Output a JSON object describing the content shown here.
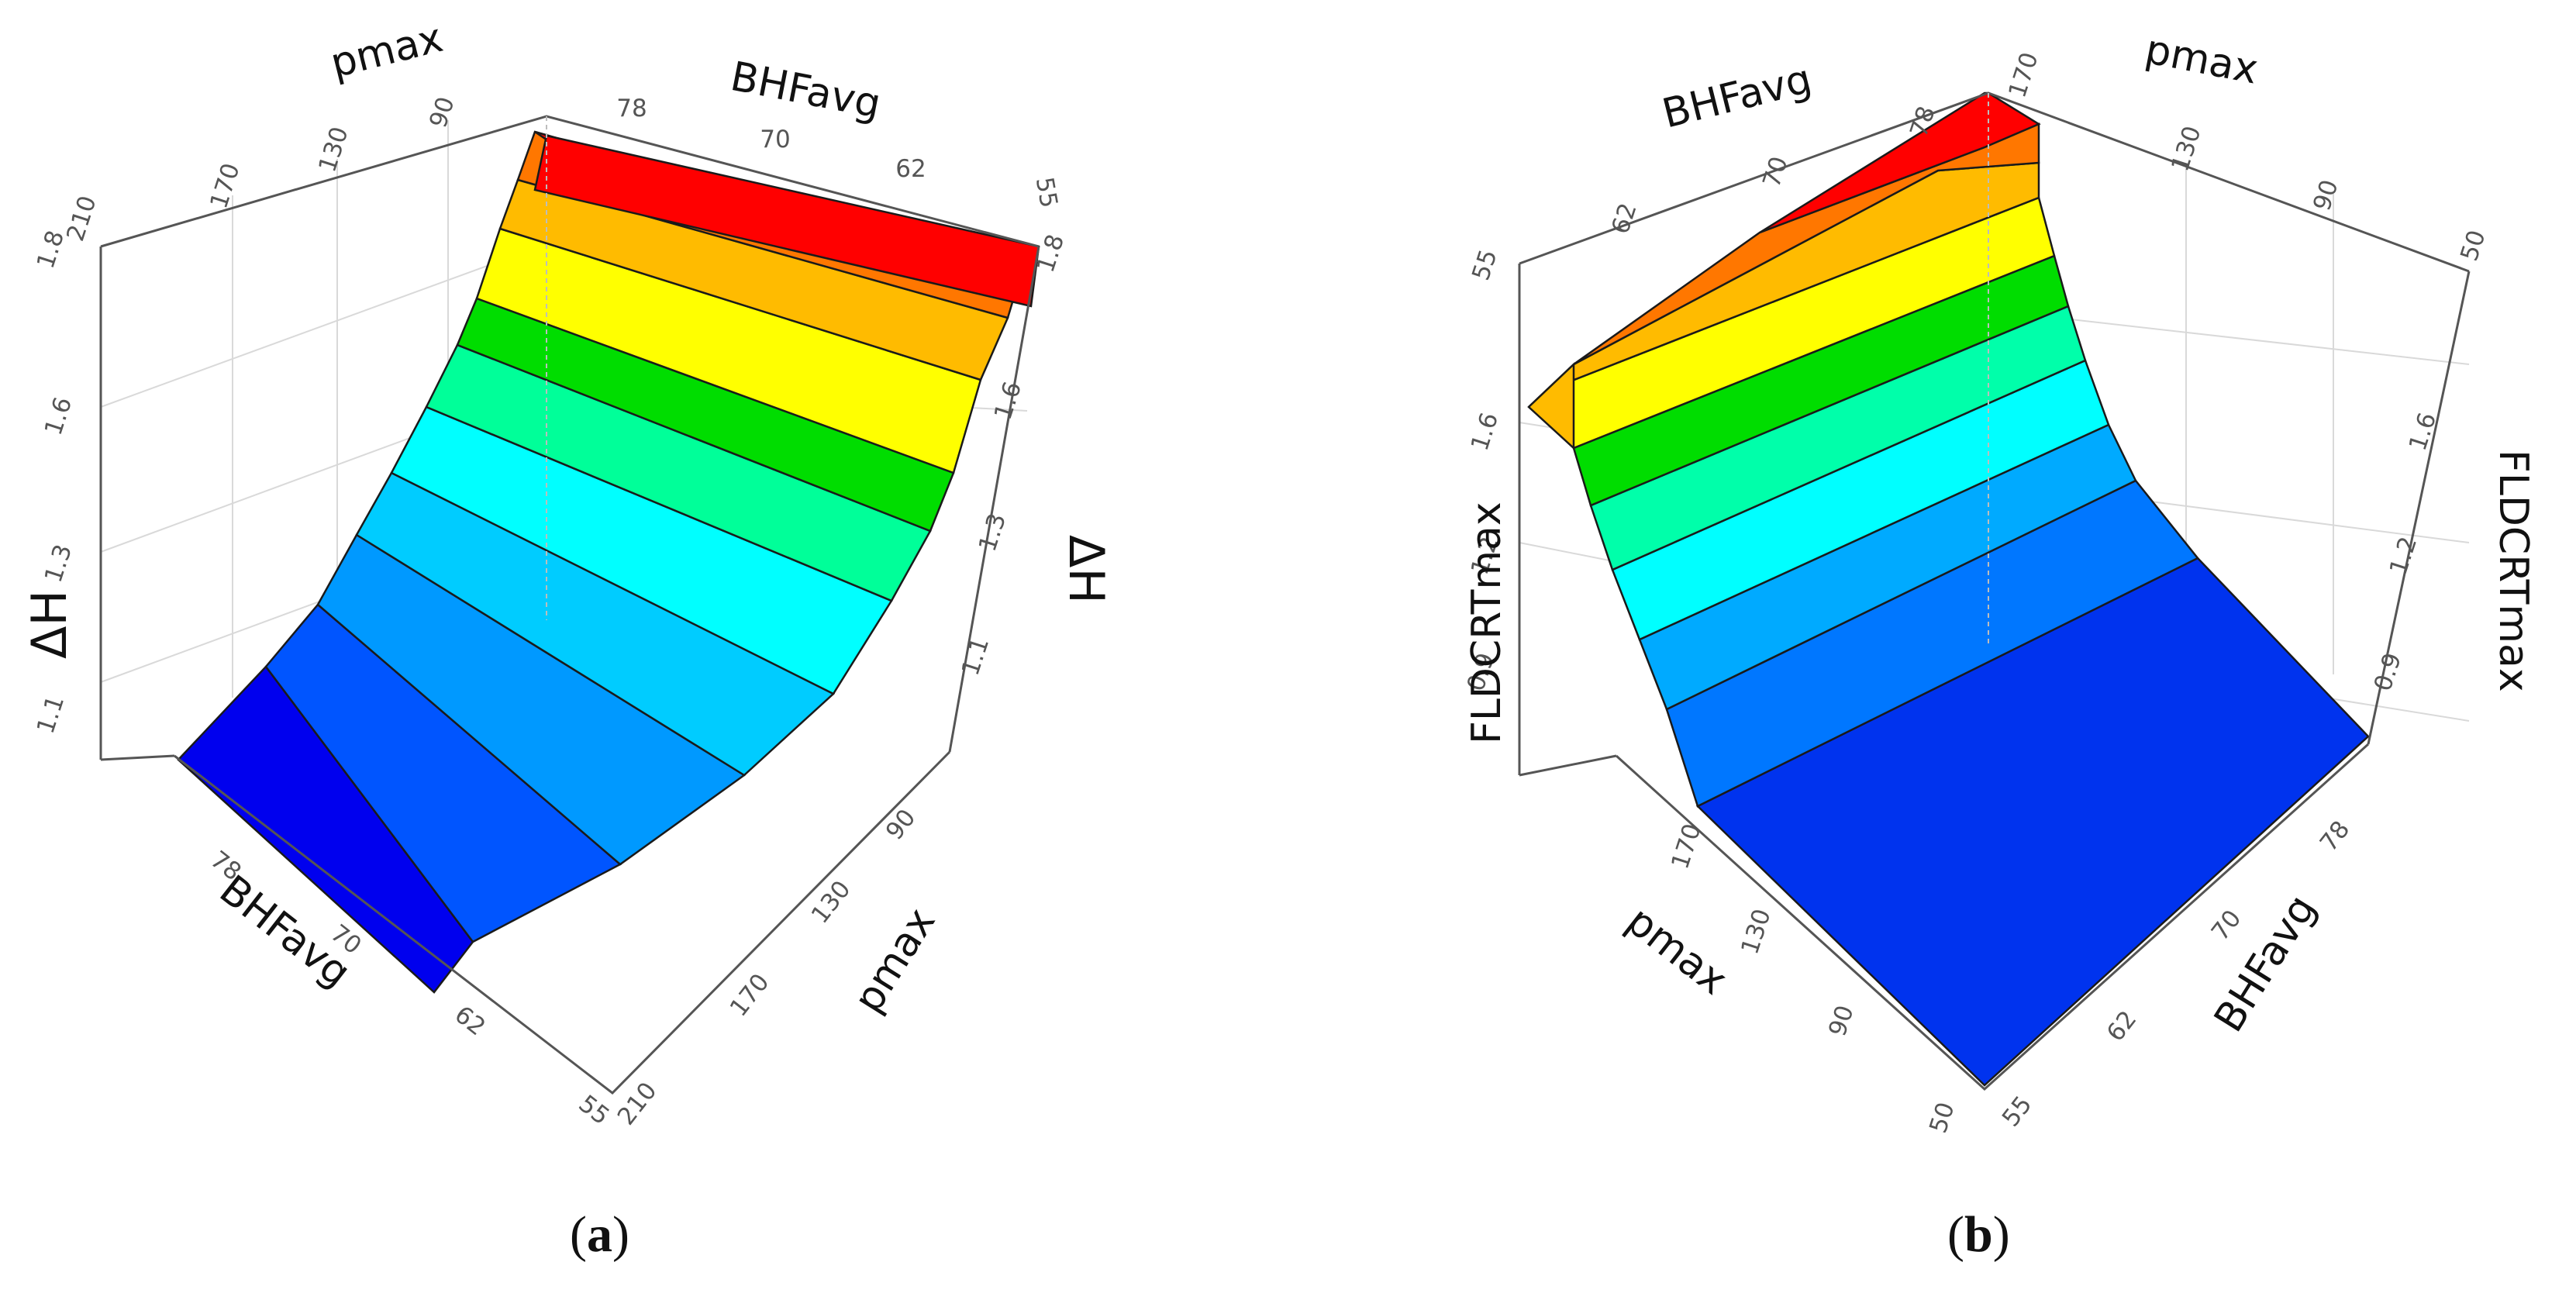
{
  "chart_data": [
    {
      "panel": "(a)",
      "type": "surface",
      "zlabel": "ΔH",
      "x_axis": {
        "label": "BHFavg",
        "ticks": [
          "55",
          "62",
          "70",
          "78"
        ]
      },
      "y_axis": {
        "label": "pmax",
        "ticks": [
          "90",
          "130",
          "170",
          "210"
        ]
      },
      "z_axis": {
        "ticks": [
          "1.1",
          "1.3",
          "1.6",
          "1.8"
        ],
        "range": [
          0.95,
          1.8
        ]
      },
      "colormap": [
        "#0000ee",
        "#0055ff",
        "#0099ff",
        "#00ddff",
        "#00ffff",
        "#00ffaa",
        "#00dd00",
        "#ffff00",
        "#ffbb00",
        "#ff7700",
        "#ff0000"
      ],
      "surface": {
        "BHFavg": [
          78,
          70,
          62,
          55
        ],
        "pmax": [
          90,
          130,
          170,
          210
        ],
        "values": [
          [
            1.8,
            1.45,
            1.1,
            0.97
          ],
          [
            1.8,
            1.45,
            1.12,
            1.0
          ],
          [
            1.8,
            1.46,
            1.14,
            1.03
          ],
          [
            1.8,
            1.46,
            1.15,
            1.05
          ]
        ]
      }
    },
    {
      "panel": "(b)",
      "type": "surface",
      "zlabel": "FLDCRTmax",
      "x_axis": {
        "label": "BHFavg",
        "ticks": [
          "55",
          "62",
          "70",
          "78"
        ]
      },
      "y_axis": {
        "label": "pmax",
        "ticks": [
          "50",
          "90",
          "130",
          "170"
        ]
      },
      "z_axis": {
        "ticks": [
          "0.9",
          "1.2",
          "1.6"
        ],
        "range": [
          0.7,
          1.8
        ]
      },
      "colormap": [
        "#0033ee",
        "#0077ff",
        "#00bbff",
        "#00ffff",
        "#00ffaa",
        "#00dd00",
        "#ffff00",
        "#ffbb00",
        "#ff7700",
        "#ff0000"
      ],
      "surface": {
        "BHFavg": [
          55,
          62,
          70,
          78
        ],
        "pmax": [
          50,
          90,
          130,
          170
        ],
        "values": [
          [
            0.72,
            0.73,
            0.8,
            1.62
          ],
          [
            0.72,
            0.74,
            0.82,
            1.68
          ],
          [
            0.72,
            0.74,
            0.84,
            1.74
          ],
          [
            0.72,
            0.75,
            0.86,
            1.8
          ]
        ]
      }
    }
  ],
  "labels": {
    "panel_a": "a",
    "panel_b": "b"
  }
}
